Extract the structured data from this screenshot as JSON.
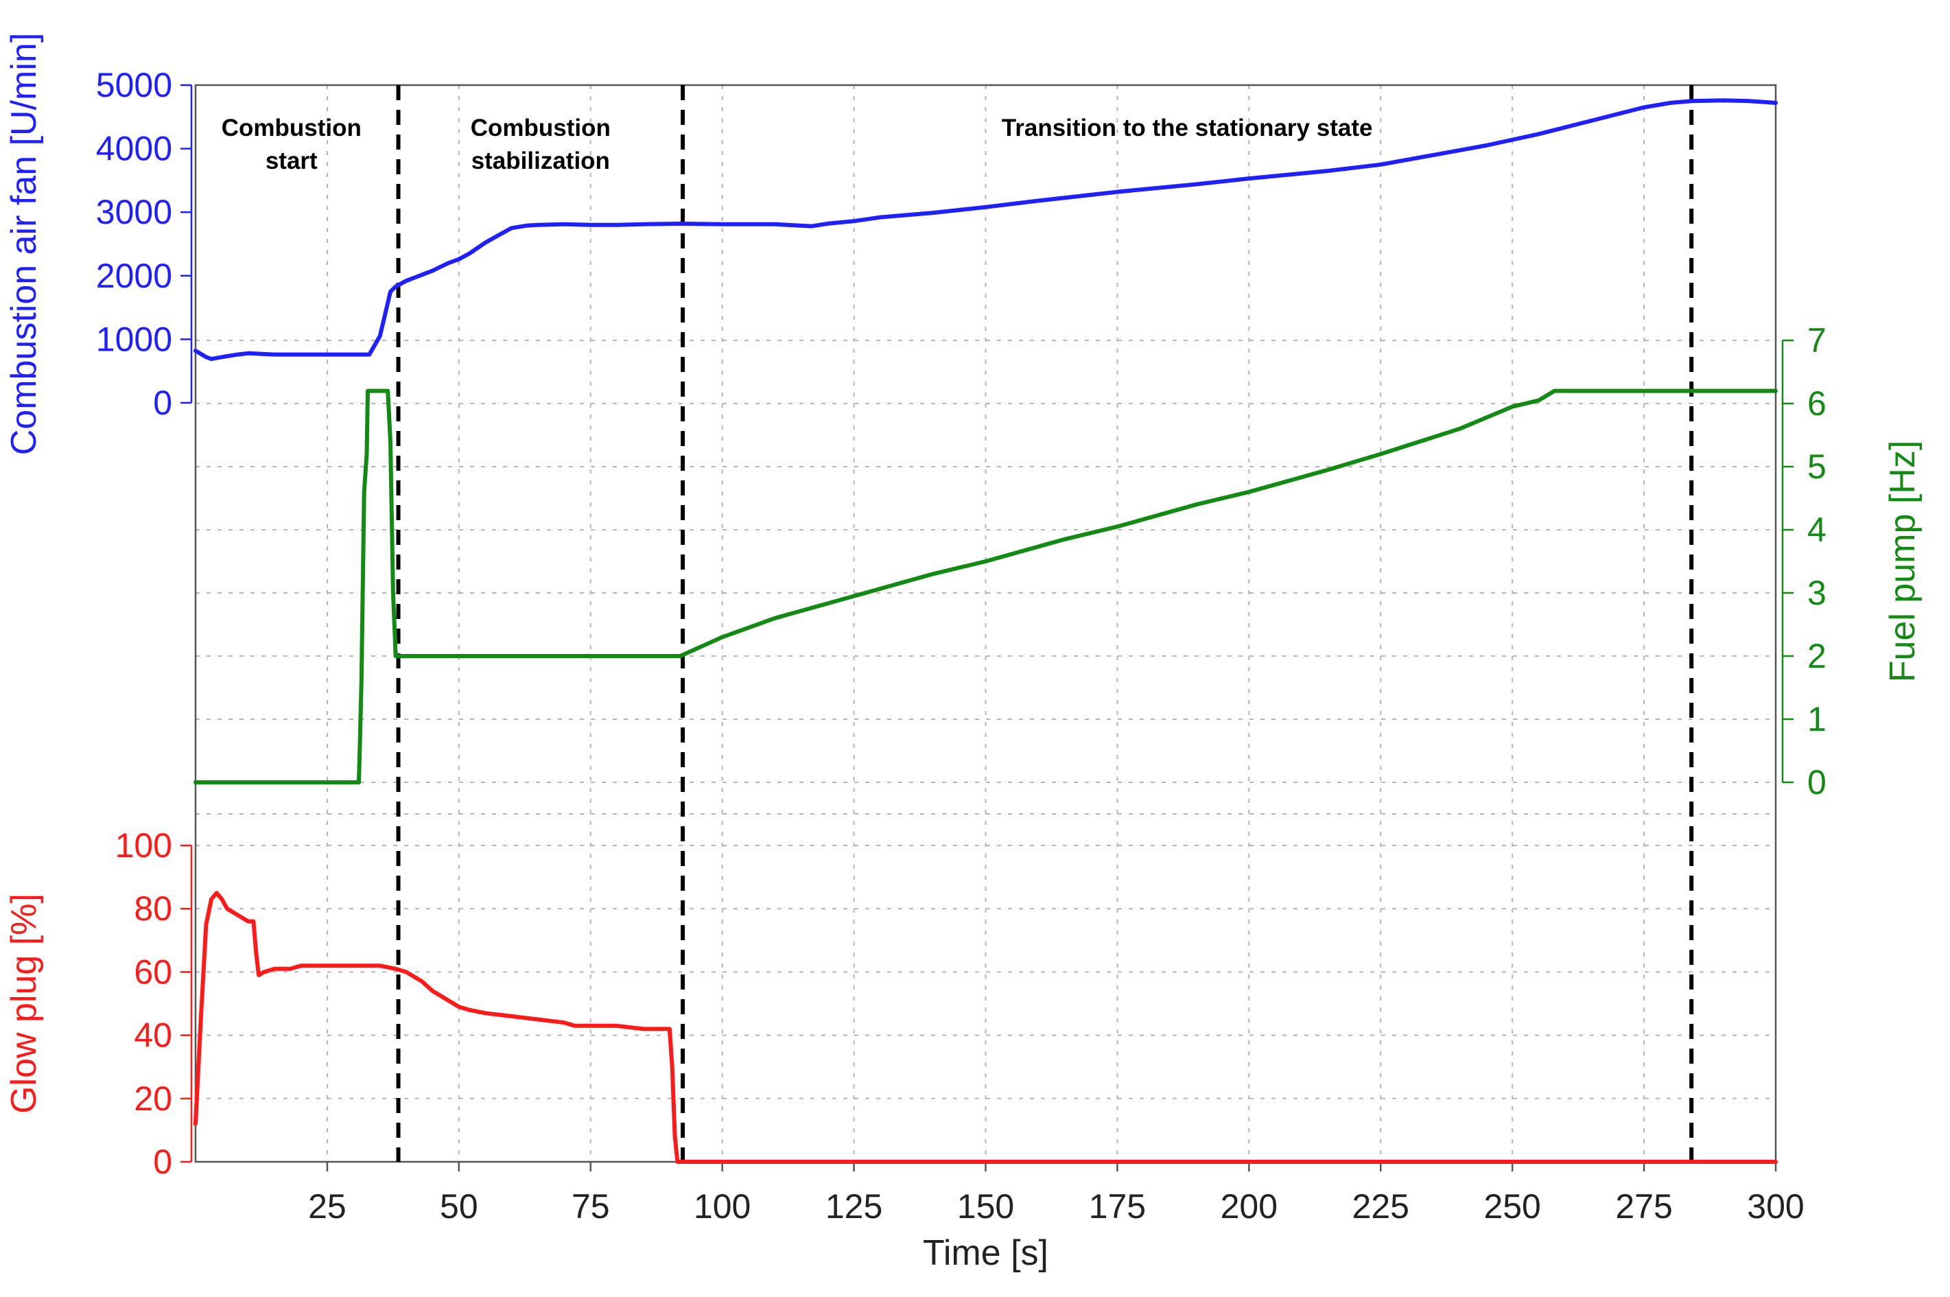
{
  "chart_data": {
    "type": "line",
    "xlabel": "Time [s]",
    "xlim": [
      0,
      300
    ],
    "x_ticks": [
      25,
      50,
      75,
      100,
      125,
      150,
      175,
      200,
      225,
      250,
      275,
      300
    ],
    "grid": true,
    "axes": {
      "air": {
        "label": "Combustion air fan [U/min]",
        "side": "left",
        "color": "#1f1fff",
        "range": [
          0,
          5000
        ],
        "ticks": [
          0,
          1000,
          2000,
          3000,
          4000,
          5000
        ]
      },
      "fuel": {
        "label": "Fuel pump [Hz]",
        "side": "right",
        "color": "#138a13",
        "range": [
          0,
          7
        ],
        "ticks": [
          0,
          1,
          2,
          3,
          4,
          5,
          6,
          7
        ]
      },
      "glow": {
        "label": "Glow plug [%]",
        "side": "left",
        "color": "#ff1a1a",
        "range": [
          0,
          100
        ],
        "ticks": [
          0,
          20,
          40,
          60,
          80,
          100
        ]
      }
    },
    "phases": [
      {
        "label_lines": [
          "Combustion",
          "start"
        ],
        "x_start": 0,
        "x_end": 38.5
      },
      {
        "label_lines": [
          "Combustion",
          "stabilization"
        ],
        "x_start": 38.5,
        "x_end": 92.5
      },
      {
        "label_lines": [
          "Transition to the stationary state"
        ],
        "x_start": 92.5,
        "x_end": 284
      }
    ],
    "phase_boundaries": [
      38.5,
      92.5,
      284
    ],
    "series": [
      {
        "axis": "air",
        "color": "#1f1fff",
        "points": [
          [
            0,
            820
          ],
          [
            2,
            720
          ],
          [
            3,
            690
          ],
          [
            5,
            720
          ],
          [
            8,
            760
          ],
          [
            10,
            780
          ],
          [
            15,
            760
          ],
          [
            25,
            760
          ],
          [
            33,
            760
          ],
          [
            35,
            1050
          ],
          [
            36,
            1400
          ],
          [
            37,
            1750
          ],
          [
            38,
            1830
          ],
          [
            40,
            1920
          ],
          [
            45,
            2080
          ],
          [
            48,
            2200
          ],
          [
            50,
            2260
          ],
          [
            52,
            2350
          ],
          [
            55,
            2520
          ],
          [
            58,
            2660
          ],
          [
            60,
            2750
          ],
          [
            63,
            2790
          ],
          [
            65,
            2800
          ],
          [
            70,
            2810
          ],
          [
            75,
            2800
          ],
          [
            80,
            2800
          ],
          [
            85,
            2810
          ],
          [
            92,
            2820
          ],
          [
            100,
            2810
          ],
          [
            110,
            2810
          ],
          [
            117,
            2780
          ],
          [
            120,
            2820
          ],
          [
            125,
            2860
          ],
          [
            130,
            2920
          ],
          [
            140,
            2990
          ],
          [
            150,
            3080
          ],
          [
            160,
            3180
          ],
          [
            175,
            3320
          ],
          [
            190,
            3440
          ],
          [
            200,
            3530
          ],
          [
            215,
            3650
          ],
          [
            225,
            3750
          ],
          [
            235,
            3900
          ],
          [
            245,
            4050
          ],
          [
            255,
            4230
          ],
          [
            265,
            4440
          ],
          [
            275,
            4650
          ],
          [
            280,
            4720
          ],
          [
            284,
            4750
          ],
          [
            290,
            4760
          ],
          [
            295,
            4750
          ],
          [
            300,
            4720
          ]
        ]
      },
      {
        "axis": "fuel",
        "color": "#138a13",
        "points": [
          [
            0,
            0
          ],
          [
            31,
            0
          ],
          [
            31.2,
            0.6
          ],
          [
            31.5,
            1.6
          ],
          [
            32,
            4.6
          ],
          [
            32.5,
            5.2
          ],
          [
            32.7,
            6.2
          ],
          [
            36.5,
            6.2
          ],
          [
            37,
            5.4
          ],
          [
            37.5,
            3.0
          ],
          [
            38,
            2.0
          ],
          [
            50,
            2.0
          ],
          [
            75,
            2.0
          ],
          [
            92,
            2.0
          ],
          [
            100,
            2.3
          ],
          [
            110,
            2.6
          ],
          [
            125,
            2.95
          ],
          [
            140,
            3.3
          ],
          [
            150,
            3.5
          ],
          [
            165,
            3.85
          ],
          [
            175,
            4.05
          ],
          [
            190,
            4.4
          ],
          [
            200,
            4.6
          ],
          [
            215,
            4.95
          ],
          [
            225,
            5.2
          ],
          [
            240,
            5.6
          ],
          [
            250,
            5.95
          ],
          [
            255,
            6.05
          ],
          [
            258,
            6.2
          ],
          [
            300,
            6.2
          ]
        ]
      },
      {
        "axis": "glow",
        "color": "#ff1a1a",
        "points": [
          [
            0,
            12
          ],
          [
            1,
            45
          ],
          [
            2,
            75
          ],
          [
            3,
            83
          ],
          [
            4,
            85
          ],
          [
            5,
            83
          ],
          [
            6,
            80
          ],
          [
            7,
            79
          ],
          [
            8,
            78
          ],
          [
            10,
            76
          ],
          [
            11,
            76
          ],
          [
            11.5,
            66
          ],
          [
            12,
            59
          ],
          [
            13,
            60
          ],
          [
            15,
            61
          ],
          [
            18,
            61
          ],
          [
            20,
            62
          ],
          [
            25,
            62
          ],
          [
            30,
            62
          ],
          [
            35,
            62
          ],
          [
            38,
            61
          ],
          [
            40,
            60
          ],
          [
            43,
            57
          ],
          [
            45,
            54
          ],
          [
            48,
            51
          ],
          [
            50,
            49
          ],
          [
            52,
            48
          ],
          [
            55,
            47
          ],
          [
            60,
            46
          ],
          [
            65,
            45
          ],
          [
            70,
            44
          ],
          [
            72,
            43
          ],
          [
            75,
            43
          ],
          [
            80,
            43
          ],
          [
            85,
            42
          ],
          [
            90,
            42
          ],
          [
            90.5,
            30
          ],
          [
            91,
            8
          ],
          [
            91.5,
            0
          ],
          [
            92,
            0
          ],
          [
            150,
            0
          ],
          [
            200,
            0
          ],
          [
            250,
            0
          ],
          [
            300,
            0
          ]
        ]
      }
    ]
  }
}
